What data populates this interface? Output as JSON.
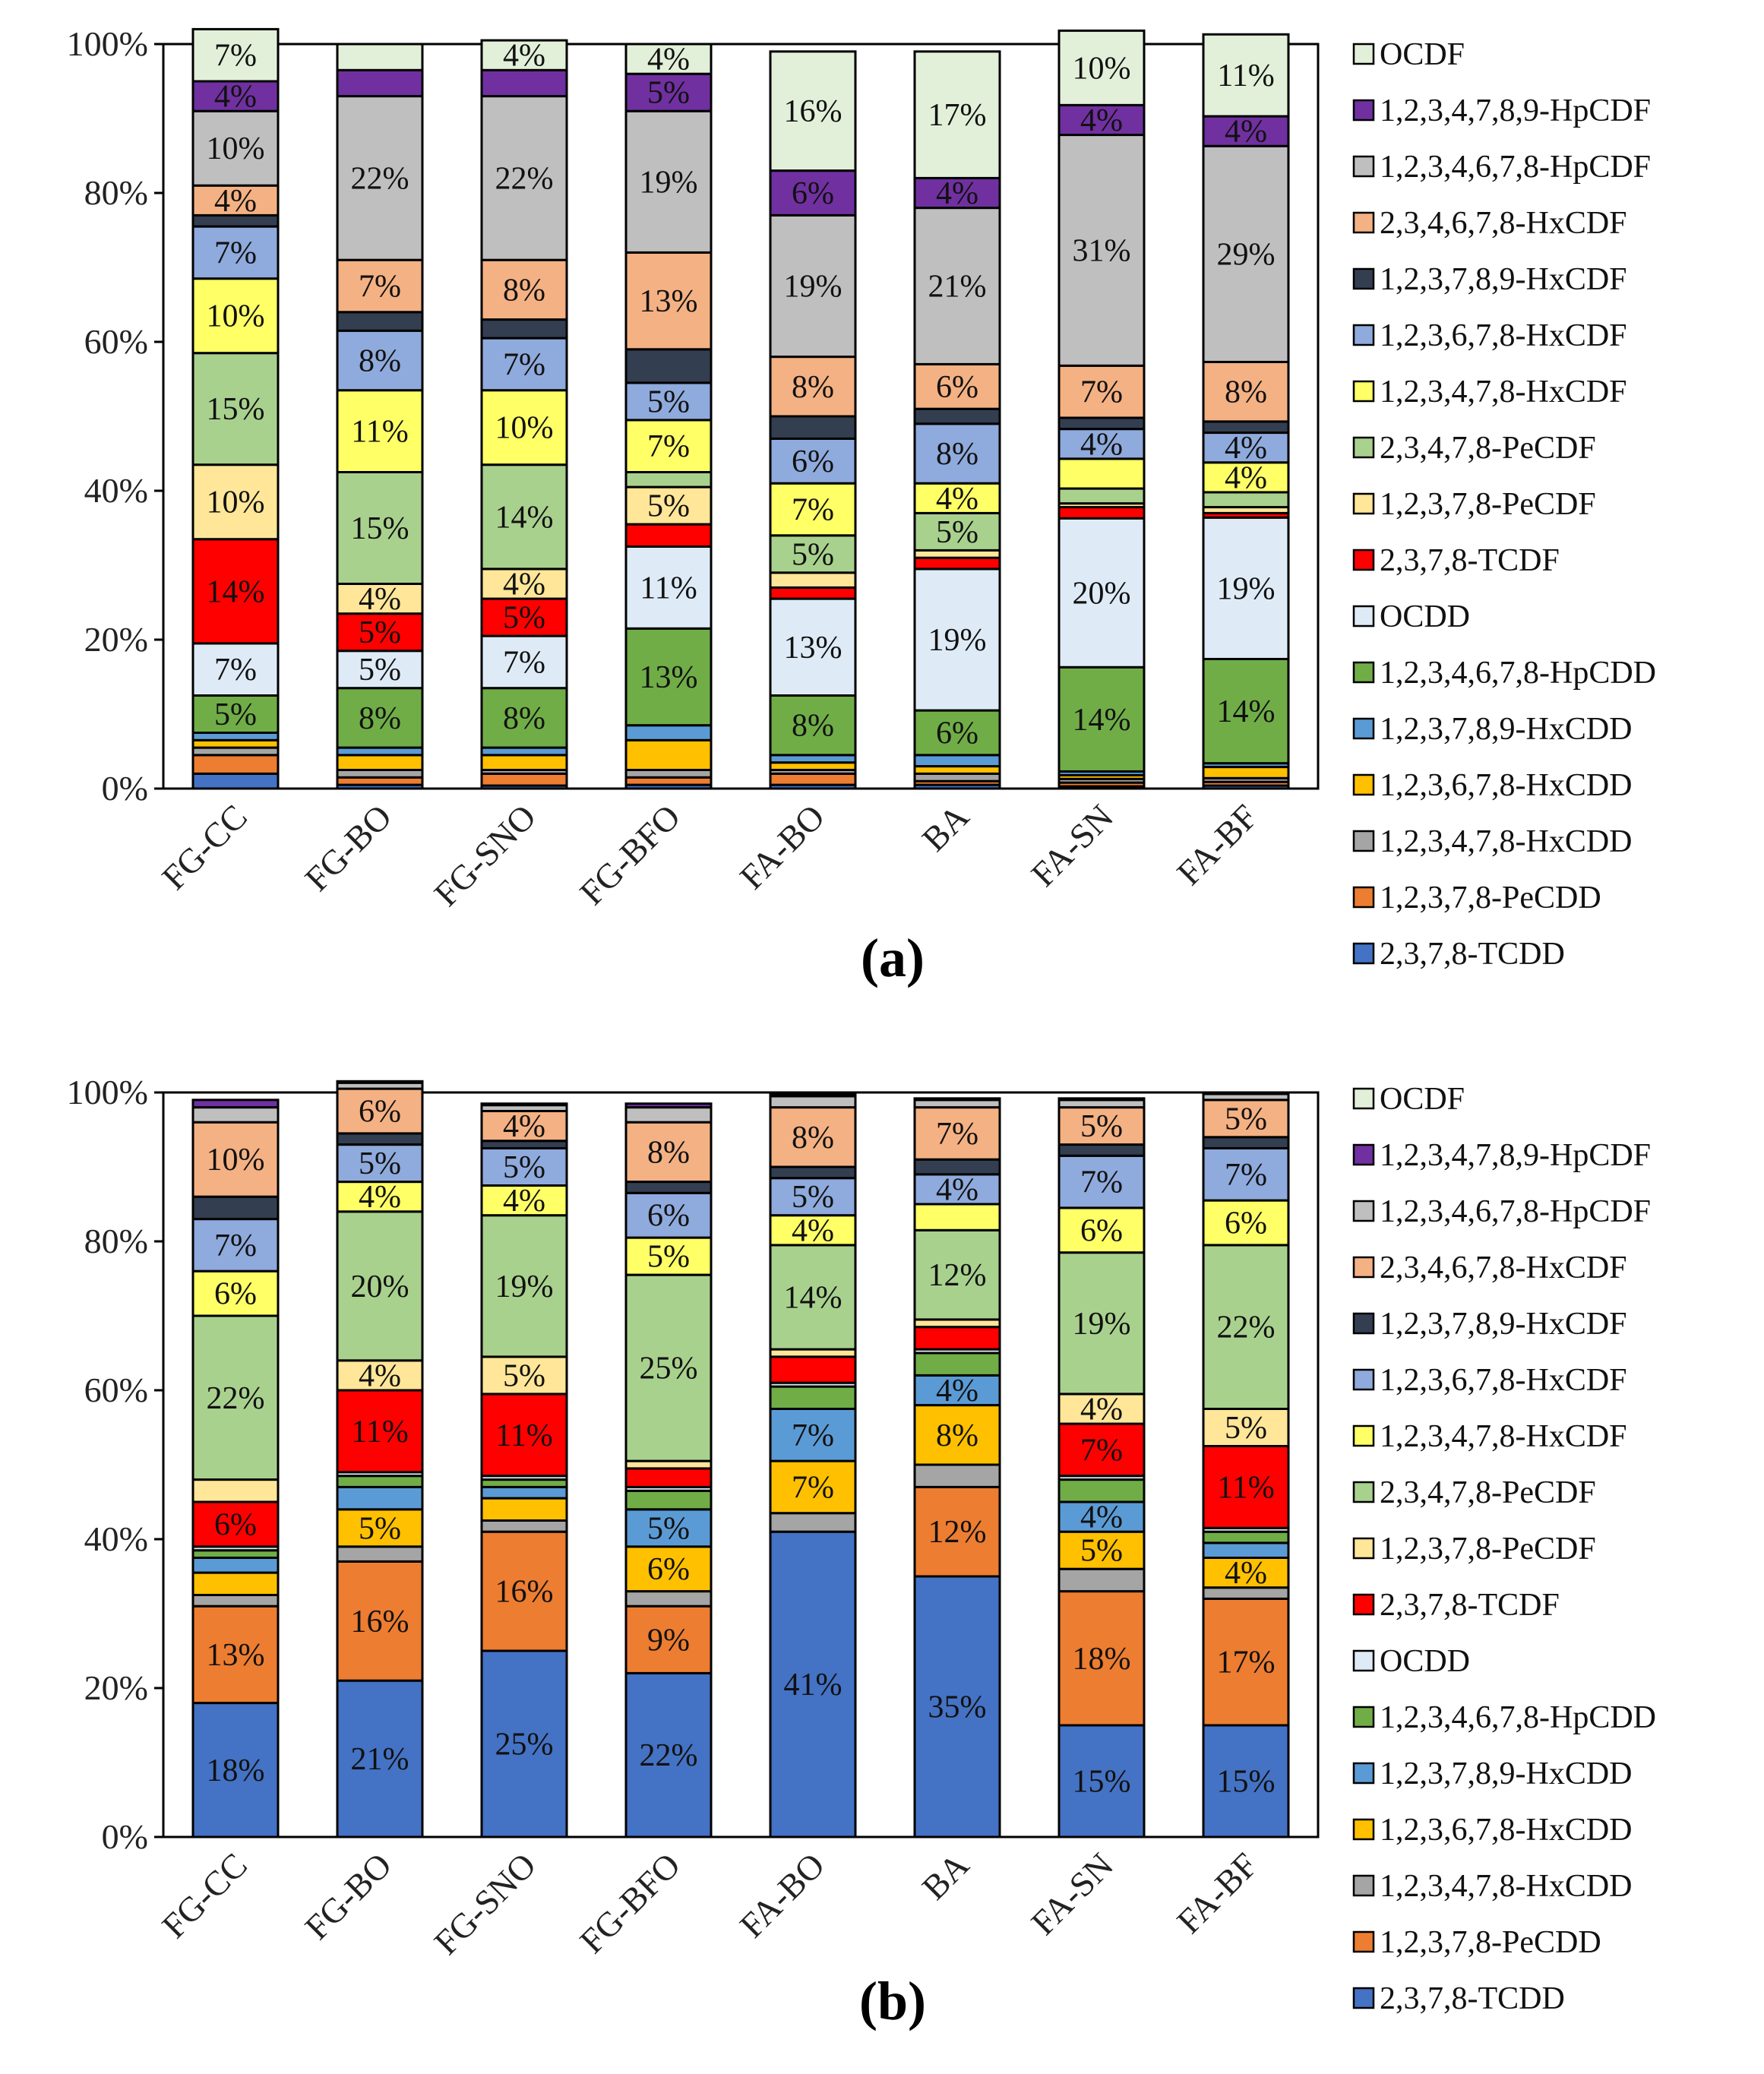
{
  "legend_series_order": [
    "OCDF",
    "1,2,3,4,7,8,9-HpCDF",
    "1,2,3,4,6,7,8-HpCDF",
    "2,3,4,6,7,8-HxCDF",
    "1,2,3,7,8,9-HxCDF",
    "1,2,3,6,7,8-HxCDF",
    "1,2,3,4,7,8-HxCDF",
    "2,3,4,7,8-PeCDF",
    "1,2,3,7,8-PeCDF",
    "2,3,7,8-TCDF",
    "OCDD",
    "1,2,3,4,6,7,8-HpCDD",
    "1,2,3,7,8,9-HxCDD",
    "1,2,3,6,7,8-HxCDD",
    "1,2,3,4,7,8-HxCDD",
    "1,2,3,7,8-PeCDD",
    "2,3,7,8-TCDD"
  ],
  "series_colors": {
    "2,3,7,8-TCDD": "#4472C4",
    "1,2,3,7,8-PeCDD": "#ED7D31",
    "1,2,3,4,7,8-HxCDD": "#A5A5A5",
    "1,2,3,6,7,8-HxCDD": "#FFC000",
    "1,2,3,7,8,9-HxCDD": "#5B9BD5",
    "1,2,3,4,6,7,8-HpCDD": "#70AD47",
    "OCDD": "#DEEBF7",
    "2,3,7,8-TCDF": "#FF0000",
    "1,2,3,7,8-PeCDF": "#FFE699",
    "2,3,4,7,8-PeCDF": "#A9D18E",
    "1,2,3,4,7,8-HxCDF": "#FFFF66",
    "1,2,3,6,7,8-HxCDF": "#8FAADC",
    "1,2,3,7,8,9-HxCDF": "#333F50",
    "2,3,4,6,7,8-HxCDF": "#F4B183",
    "1,2,3,4,6,7,8-HpCDF": "#BFBFBF",
    "1,2,3,4,7,8,9-HpCDF": "#7030A0",
    "OCDF": "#E2F0D9"
  },
  "chart_data": [
    {
      "type": "bar",
      "stacked": true,
      "panel_label": "(a)",
      "ylim": [
        0,
        100
      ],
      "yticks": [
        "0%",
        "20%",
        "40%",
        "60%",
        "80%",
        "100%"
      ],
      "categories": [
        "FG-CC",
        "FG-BO",
        "FG-SNO",
        "FG-BFO",
        "FA-BO",
        "BA",
        "FA-SN",
        "FA-BF"
      ],
      "series": [
        {
          "name": "2,3,7,8-TCDD",
          "values": [
            2.0,
            0.5,
            0.4,
            0.5,
            0.5,
            0.5,
            0.3,
            0.4
          ]
        },
        {
          "name": "1,2,3,7,8-PeCDD",
          "values": [
            2.5,
            1.0,
            1.6,
            1.0,
            1.5,
            0.5,
            0.5,
            0.5
          ]
        },
        {
          "name": "1,2,3,4,7,8-HxCDD",
          "values": [
            1.0,
            1.0,
            0.5,
            1.0,
            0.5,
            1.0,
            0.5,
            0.5
          ]
        },
        {
          "name": "1,2,3,6,7,8-HxCDD",
          "values": [
            1.0,
            2.0,
            2.0,
            4.0,
            1.0,
            1.0,
            0.5,
            1.5
          ]
        },
        {
          "name": "1,2,3,7,8,9-HxCDD",
          "values": [
            1.0,
            1.0,
            1.0,
            2.0,
            1.0,
            1.5,
            0.5,
            0.5
          ]
        },
        {
          "name": "1,2,3,4,6,7,8-HpCDD",
          "values": [
            5.0,
            8.0,
            8.0,
            13.0,
            8.0,
            6.0,
            14.0,
            14.0
          ]
        },
        {
          "name": "OCDD",
          "values": [
            7.0,
            5.0,
            7.0,
            11.0,
            13.0,
            19.0,
            20.0,
            19.0
          ]
        },
        {
          "name": "2,3,7,8-TCDF",
          "values": [
            14.0,
            5.0,
            5.0,
            3.0,
            1.5,
            1.5,
            1.5,
            0.6
          ]
        },
        {
          "name": "1,2,3,7,8-PeCDF",
          "values": [
            10.0,
            4.0,
            4.0,
            5.0,
            2.0,
            1.0,
            0.5,
            0.8
          ]
        },
        {
          "name": "2,3,4,7,8-PeCDF",
          "values": [
            15.0,
            15.0,
            14.0,
            2.0,
            5.0,
            5.0,
            2.0,
            2.0
          ]
        },
        {
          "name": "1,2,3,4,7,8-HxCDF",
          "values": [
            10.0,
            11.0,
            10.0,
            7.0,
            7.0,
            4.0,
            4.0,
            4.0
          ]
        },
        {
          "name": "1,2,3,6,7,8-HxCDF",
          "values": [
            7.0,
            8.0,
            7.0,
            5.0,
            6.0,
            8.0,
            4.0,
            4.0
          ]
        },
        {
          "name": "1,2,3,7,8,9-HxCDF",
          "values": [
            1.5,
            2.5,
            2.5,
            4.5,
            3.0,
            2.0,
            1.5,
            1.5
          ]
        },
        {
          "name": "2,3,4,6,7,8-HxCDF",
          "values": [
            4.0,
            7.0,
            8.0,
            13.0,
            8.0,
            6.0,
            7.0,
            8.0
          ]
        },
        {
          "name": "1,2,3,4,6,7,8-HpCDF",
          "values": [
            10.0,
            22.0,
            22.0,
            19.0,
            19.0,
            21.0,
            31.0,
            29.0
          ]
        },
        {
          "name": "1,2,3,4,7,8,9-HpCDF",
          "values": [
            4.0,
            3.5,
            3.5,
            5.0,
            6.0,
            4.0,
            4.0,
            4.0
          ]
        },
        {
          "name": "OCDF",
          "values": [
            7.0,
            3.5,
            4.0,
            4.0,
            16.0,
            17.0,
            10.0,
            11.0
          ]
        }
      ],
      "labels": {
        "FG-CC": {
          "1,2,3,4,6,7,8-HpCDD": "5%",
          "OCDD": "7%",
          "2,3,7,8-TCDF": "14%",
          "1,2,3,7,8-PeCDF": "10%",
          "2,3,4,7,8-PeCDF": "15%",
          "1,2,3,4,7,8-HxCDF": "10%",
          "1,2,3,6,7,8-HxCDF": "7%",
          "2,3,4,6,7,8-HxCDF": "4%",
          "1,2,3,4,6,7,8-HpCDF": "10%",
          "1,2,3,4,7,8,9-HpCDF": "4%",
          "OCDF": "7%"
        },
        "FG-BO": {
          "1,2,3,4,6,7,8-HpCDD": "8%",
          "OCDD": "5%",
          "2,3,7,8-TCDF": "5%",
          "1,2,3,7,8-PeCDF": "4%",
          "2,3,4,7,8-PeCDF": "15%",
          "1,2,3,4,7,8-HxCDF": "11%",
          "1,2,3,6,7,8-HxCDF": "8%",
          "2,3,4,6,7,8-HxCDF": "7%",
          "1,2,3,4,6,7,8-HpCDF": "22%"
        },
        "FG-SNO": {
          "1,2,3,4,6,7,8-HpCDD": "8%",
          "OCDD": "7%",
          "2,3,7,8-TCDF": "5%",
          "1,2,3,7,8-PeCDF": "4%",
          "2,3,4,7,8-PeCDF": "14%",
          "1,2,3,4,7,8-HxCDF": "10%",
          "1,2,3,6,7,8-HxCDF": "7%",
          "2,3,4,6,7,8-HxCDF": "8%",
          "1,2,3,4,6,7,8-HpCDF": "22%",
          "OCDF": "4%"
        },
        "FG-BFO": {
          "1,2,3,4,6,7,8-HpCDD": "13%",
          "OCDD": "11%",
          "1,2,3,7,8-PeCDF": "5%",
          "1,2,3,4,7,8-HxCDF": "7%",
          "1,2,3,6,7,8-HxCDF": "5%",
          "2,3,4,6,7,8-HxCDF": "13%",
          "1,2,3,4,6,7,8-HpCDF": "19%",
          "1,2,3,4,7,8,9-HpCDF": "5%",
          "OCDF": "4%"
        },
        "FA-BO": {
          "1,2,3,4,6,7,8-HpCDD": "8%",
          "OCDD": "13%",
          "2,3,4,7,8-PeCDF": "5%",
          "1,2,3,4,7,8-HxCDF": "7%",
          "1,2,3,6,7,8-HxCDF": "6%",
          "2,3,4,6,7,8-HxCDF": "8%",
          "1,2,3,4,6,7,8-HpCDF": "19%",
          "1,2,3,4,7,8,9-HpCDF": "6%",
          "OCDF": "16%"
        },
        "BA": {
          "1,2,3,4,6,7,8-HpCDD": "6%",
          "OCDD": "19%",
          "2,3,4,7,8-PeCDF": "5%",
          "1,2,3,4,7,8-HxCDF": "4%",
          "1,2,3,6,7,8-HxCDF": "8%",
          "2,3,4,6,7,8-HxCDF": "6%",
          "1,2,3,4,6,7,8-HpCDF": "21%",
          "1,2,3,4,7,8,9-HpCDF": "4%",
          "OCDF": "17%"
        },
        "FA-SN": {
          "1,2,3,4,6,7,8-HpCDD": "14%",
          "OCDD": "20%",
          "1,2,3,6,7,8-HxCDF": "4%",
          "2,3,4,6,7,8-HxCDF": "7%",
          "1,2,3,4,6,7,8-HpCDF": "31%",
          "1,2,3,4,7,8,9-HpCDF": "4%",
          "OCDF": "10%"
        },
        "FA-BF": {
          "1,2,3,4,6,7,8-HpCDD": "14%",
          "OCDD": "19%",
          "1,2,3,4,7,8-HxCDF": "4%",
          "1,2,3,6,7,8-HxCDF": "4%",
          "2,3,4,6,7,8-HxCDF": "8%",
          "1,2,3,4,6,7,8-HpCDF": "29%",
          "1,2,3,4,7,8,9-HpCDF": "4%",
          "OCDF": "11%"
        }
      }
    },
    {
      "type": "bar",
      "stacked": true,
      "panel_label": "(b)",
      "ylim": [
        0,
        100
      ],
      "yticks": [
        "0%",
        "20%",
        "40%",
        "60%",
        "80%",
        "100%"
      ],
      "categories": [
        "FG-CC",
        "FG-BO",
        "FG-SNO",
        "FG-BFO",
        "FA-BO",
        "BA",
        "FA-SN",
        "FA-BF"
      ],
      "series": [
        {
          "name": "2,3,7,8-TCDD",
          "values": [
            18.0,
            21.0,
            25.0,
            22.0,
            41.0,
            35.0,
            15.0,
            15.0
          ]
        },
        {
          "name": "1,2,3,7,8-PeCDD",
          "values": [
            13.0,
            16.0,
            16.0,
            9.0,
            0.0,
            12.0,
            18.0,
            17.0
          ]
        },
        {
          "name": "1,2,3,4,7,8-HxCDD",
          "values": [
            1.5,
            2.0,
            1.5,
            2.0,
            2.5,
            3.0,
            3.0,
            1.5
          ]
        },
        {
          "name": "1,2,3,6,7,8-HxCDD",
          "values": [
            3.0,
            5.0,
            3.0,
            6.0,
            7.0,
            8.0,
            5.0,
            4.0
          ]
        },
        {
          "name": "1,2,3,7,8,9-HxCDD",
          "values": [
            2.0,
            3.0,
            1.5,
            5.0,
            7.0,
            4.0,
            4.0,
            2.0
          ]
        },
        {
          "name": "1,2,3,4,6,7,8-HpCDD",
          "values": [
            1.0,
            1.5,
            1.0,
            2.5,
            3.0,
            3.0,
            3.0,
            1.5
          ]
        },
        {
          "name": "OCDD",
          "values": [
            0.5,
            0.5,
            0.5,
            0.5,
            0.5,
            0.5,
            0.5,
            0.5
          ]
        },
        {
          "name": "2,3,7,8-TCDF",
          "values": [
            6.0,
            11.0,
            11.0,
            2.5,
            3.5,
            3.0,
            7.0,
            11.0
          ]
        },
        {
          "name": "1,2,3,7,8-PeCDF",
          "values": [
            3.0,
            4.0,
            5.0,
            1.0,
            1.0,
            1.0,
            4.0,
            5.0
          ]
        },
        {
          "name": "2,3,4,7,8-PeCDF",
          "values": [
            22.0,
            20.0,
            19.0,
            25.0,
            14.0,
            12.0,
            19.0,
            22.0
          ]
        },
        {
          "name": "1,2,3,4,7,8-HxCDF",
          "values": [
            6.0,
            4.0,
            4.0,
            5.0,
            4.0,
            3.5,
            6.0,
            6.0
          ]
        },
        {
          "name": "1,2,3,6,7,8-HxCDF",
          "values": [
            7.0,
            5.0,
            5.0,
            6.0,
            5.0,
            4.0,
            7.0,
            7.0
          ]
        },
        {
          "name": "1,2,3,7,8,9-HxCDF",
          "values": [
            3.0,
            1.5,
            1.0,
            1.5,
            1.5,
            2.0,
            1.5,
            1.5
          ]
        },
        {
          "name": "2,3,4,6,7,8-HxCDF",
          "values": [
            10.0,
            6.0,
            4.0,
            8.0,
            8.0,
            7.0,
            5.0,
            5.0
          ]
        },
        {
          "name": "1,2,3,4,6,7,8-HpCDF",
          "values": [
            2.0,
            0.8,
            0.8,
            2.0,
            1.5,
            1.0,
            1.0,
            0.8
          ]
        },
        {
          "name": "1,2,3,4,7,8,9-HpCDF",
          "values": [
            1.0,
            0.2,
            0.2,
            0.5,
            0.2,
            0.2,
            0.2,
            0.2
          ]
        },
        {
          "name": "OCDF",
          "values": [
            0.0,
            0.0,
            0.0,
            0.0,
            0.0,
            0.0,
            0.0,
            0.0
          ]
        }
      ],
      "labels": {
        "FG-CC": {
          "2,3,7,8-TCDD": "18%",
          "1,2,3,7,8-PeCDD": "13%",
          "2,3,7,8-TCDF": "6%",
          "2,3,4,7,8-PeCDF": "22%",
          "1,2,3,4,7,8-HxCDF": "6%",
          "1,2,3,6,7,8-HxCDF": "7%",
          "2,3,4,6,7,8-HxCDF": "10%"
        },
        "FG-BO": {
          "2,3,7,8-TCDD": "21%",
          "1,2,3,7,8-PeCDD": "16%",
          "1,2,3,6,7,8-HxCDD": "5%",
          "2,3,7,8-TCDF": "11%",
          "1,2,3,7,8-PeCDF": "4%",
          "2,3,4,7,8-PeCDF": "20%",
          "1,2,3,4,7,8-HxCDF": "4%",
          "1,2,3,6,7,8-HxCDF": "5%",
          "2,3,4,6,7,8-HxCDF": "6%"
        },
        "FG-SNO": {
          "2,3,7,8-TCDD": "25%",
          "1,2,3,7,8-PeCDD": "16%",
          "2,3,7,8-TCDF": "11%",
          "1,2,3,7,8-PeCDF": "5%",
          "2,3,4,7,8-PeCDF": "19%",
          "1,2,3,4,7,8-HxCDF": "4%",
          "1,2,3,6,7,8-HxCDF": "5%",
          "2,3,4,6,7,8-HxCDF": "4%"
        },
        "FG-BFO": {
          "2,3,7,8-TCDD": "22%",
          "1,2,3,7,8-PeCDD": "9%",
          "1,2,3,6,7,8-HxCDD": "6%",
          "1,2,3,7,8,9-HxCDD": "5%",
          "2,3,4,7,8-PeCDF": "25%",
          "1,2,3,4,7,8-HxCDF": "5%",
          "1,2,3,6,7,8-HxCDF": "6%",
          "2,3,4,6,7,8-HxCDF": "8%"
        },
        "FA-BO": {
          "2,3,7,8-TCDD": "41%",
          "1,2,3,6,7,8-HxCDD": "7%",
          "1,2,3,7,8,9-HxCDD": "7%",
          "2,3,4,7,8-PeCDF": "14%",
          "1,2,3,4,7,8-HxCDF": "4%",
          "1,2,3,6,7,8-HxCDF": "5%",
          "2,3,4,6,7,8-HxCDF": "8%"
        },
        "BA": {
          "2,3,7,8-TCDD": "35%",
          "1,2,3,7,8-PeCDD": "12%",
          "1,2,3,6,7,8-HxCDD": "8%",
          "1,2,3,7,8,9-HxCDD": "4%",
          "2,3,4,7,8-PeCDF": "12%",
          "1,2,3,6,7,8-HxCDF": "4%",
          "2,3,4,6,7,8-HxCDF": "7%"
        },
        "FA-SN": {
          "2,3,7,8-TCDD": "15%",
          "1,2,3,7,8-PeCDD": "18%",
          "1,2,3,6,7,8-HxCDD": "5%",
          "1,2,3,7,8,9-HxCDD": "4%",
          "2,3,7,8-TCDF": "7%",
          "1,2,3,7,8-PeCDF": "4%",
          "2,3,4,7,8-PeCDF": "19%",
          "1,2,3,4,7,8-HxCDF": "6%",
          "1,2,3,6,7,8-HxCDF": "7%",
          "2,3,4,6,7,8-HxCDF": "5%"
        },
        "FA-BF": {
          "2,3,7,8-TCDD": "15%",
          "1,2,3,7,8-PeCDD": "17%",
          "1,2,3,6,7,8-HxCDD": "4%",
          "2,3,7,8-TCDF": "11%",
          "1,2,3,7,8-PeCDF": "5%",
          "2,3,4,7,8-PeCDF": "22%",
          "1,2,3,4,7,8-HxCDF": "6%",
          "1,2,3,6,7,8-HxCDF": "7%",
          "2,3,4,6,7,8-HxCDF": "5%"
        }
      }
    }
  ]
}
